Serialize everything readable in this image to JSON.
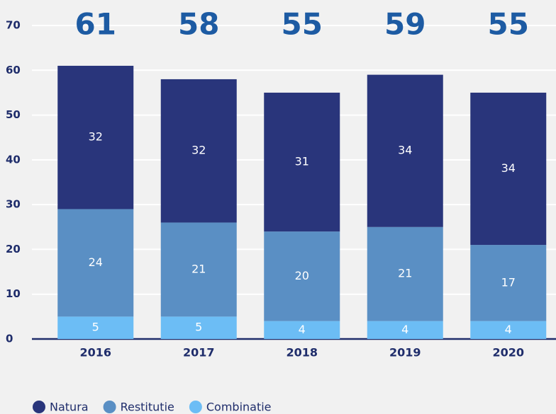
{
  "chart_data": {
    "type": "stacked_bar",
    "categories": [
      "2016",
      "2017",
      "2018",
      "2019",
      "2020"
    ],
    "series": [
      {
        "name": "Combinatie",
        "color": "#6cbdf5",
        "values": [
          5,
          5,
          4,
          4,
          4
        ]
      },
      {
        "name": "Restitutie",
        "color": "#5a8fc4",
        "values": [
          24,
          21,
          20,
          21,
          17
        ]
      },
      {
        "name": "Natura",
        "color": "#29357b",
        "values": [
          32,
          32,
          31,
          34,
          34
        ]
      }
    ],
    "totals": [
      61,
      58,
      55,
      59,
      55
    ],
    "ylim": [
      0,
      70
    ],
    "yticks": [
      0,
      10,
      20,
      30,
      40,
      50,
      60,
      70
    ],
    "grid": true,
    "legend_order": [
      2,
      1,
      0
    ]
  }
}
